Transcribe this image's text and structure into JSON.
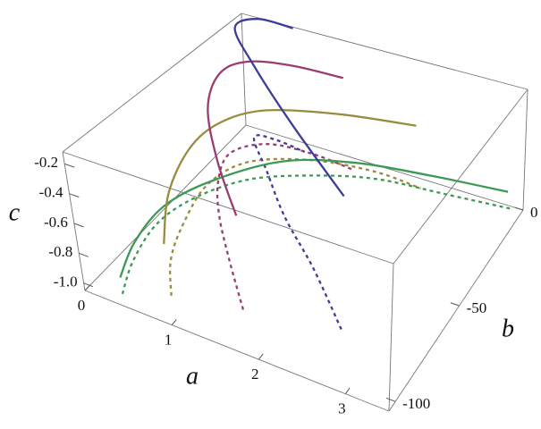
{
  "chart_data": {
    "type": "line3d",
    "xlabel": "a",
    "ylabel": "b",
    "zlabel": "c",
    "alim": [
      0,
      3.5
    ],
    "blim": [
      -105,
      0
    ],
    "clim": [
      -1.05,
      -0.12
    ],
    "aticks": [
      0,
      1,
      2,
      3
    ],
    "bticks": [
      0,
      -50,
      -100
    ],
    "cticks": [
      -0.2,
      -0.4,
      -0.6,
      -0.8,
      {
        "value": -1,
        "label": "-1.0"
      }
    ],
    "series": [
      {
        "color": "#3d9954",
        "dashed": true,
        "a": [
          0.45,
          0.53,
          0.64,
          0.91,
          1.34,
          1.89,
          2.45,
          3.05,
          3.5
        ],
        "b": [
          -105,
          -100,
          -89,
          -79,
          -68,
          -58,
          -47,
          -32,
          -11
        ],
        "c": [
          -0.97,
          -0.78,
          -0.62,
          -0.49,
          -0.39,
          -0.36,
          -0.4,
          -0.58,
          -0.88
        ]
      },
      {
        "color": "#998c3d",
        "dashed": true,
        "a": [
          1.03,
          0.97,
          0.94,
          0.97,
          1.16,
          1.71,
          2.28,
          2.64
        ],
        "b": [
          -105,
          -100,
          -89,
          -74,
          -58,
          -47,
          -37,
          -26
        ],
        "c": [
          -0.85,
          -0.68,
          -0.56,
          -0.44,
          -0.41,
          -0.41,
          -0.5,
          -0.69
        ]
      },
      {
        "color": "#993d71",
        "dashed": true,
        "a": [
          1.85,
          1.44,
          1.08,
          0.89,
          0.86,
          1.09,
          1.44,
          1.74
        ],
        "b": [
          -105,
          -89,
          -74,
          -63,
          -53,
          -42,
          -32,
          -21
        ],
        "c": [
          -0.76,
          -0.69,
          -0.63,
          -0.54,
          -0.46,
          -0.47,
          -0.59,
          -0.79
        ]
      },
      {
        "color": "#3d3d99",
        "dashed": true,
        "a": [
          2.95,
          2.4,
          1.84,
          1.37,
          0.94,
          1.01,
          1.14
        ],
        "b": [
          -105,
          -89,
          -74,
          -58,
          -42,
          -32,
          -21
        ],
        "c": [
          -0.65,
          -0.55,
          -0.48,
          -0.43,
          -0.45,
          -0.57,
          -0.77
        ]
      },
      {
        "color": "#3d9954",
        "dashed": false,
        "a": [
          0.45,
          0.57,
          0.74,
          1.12,
          1.75,
          2.41,
          3.0,
          3.47
        ],
        "b": [
          -105,
          -100,
          -89,
          -79,
          -68,
          -58,
          -42,
          -11
        ],
        "c": [
          -0.86,
          -0.65,
          -0.48,
          -0.33,
          -0.18,
          -0.17,
          -0.33,
          -0.76
        ]
      },
      {
        "color": "#998c3d",
        "dashed": false,
        "a": [
          0.81,
          0.61,
          0.58,
          0.76,
          1.09,
          1.76,
          2.5
        ],
        "b": [
          -95,
          -79,
          -63,
          -53,
          -42,
          -32,
          -21
        ],
        "c": [
          -0.66,
          -0.52,
          -0.38,
          -0.26,
          -0.22,
          -0.23,
          -0.31
        ]
      },
      {
        "color": "#993d71",
        "dashed": false,
        "a": [
          1.28,
          0.8,
          0.41,
          0.37,
          0.49,
          1.0,
          1.54
        ],
        "b": [
          -74,
          -58,
          -42,
          -32,
          -21,
          -19,
          -16
        ],
        "c": [
          -0.59,
          -0.48,
          -0.34,
          -0.19,
          -0.19,
          -0.15,
          -0.18
        ]
      },
      {
        "color": "#3d3d99",
        "dashed": false,
        "a": [
          2.34,
          1.5,
          0.45,
          0.02,
          0.2,
          0.63
        ],
        "b": [
          -63,
          -47,
          -16,
          -5,
          0,
          0
        ],
        "c": [
          -0.36,
          -0.2,
          -0.27,
          -0.18,
          -0.13,
          -0.13
        ]
      }
    ]
  }
}
